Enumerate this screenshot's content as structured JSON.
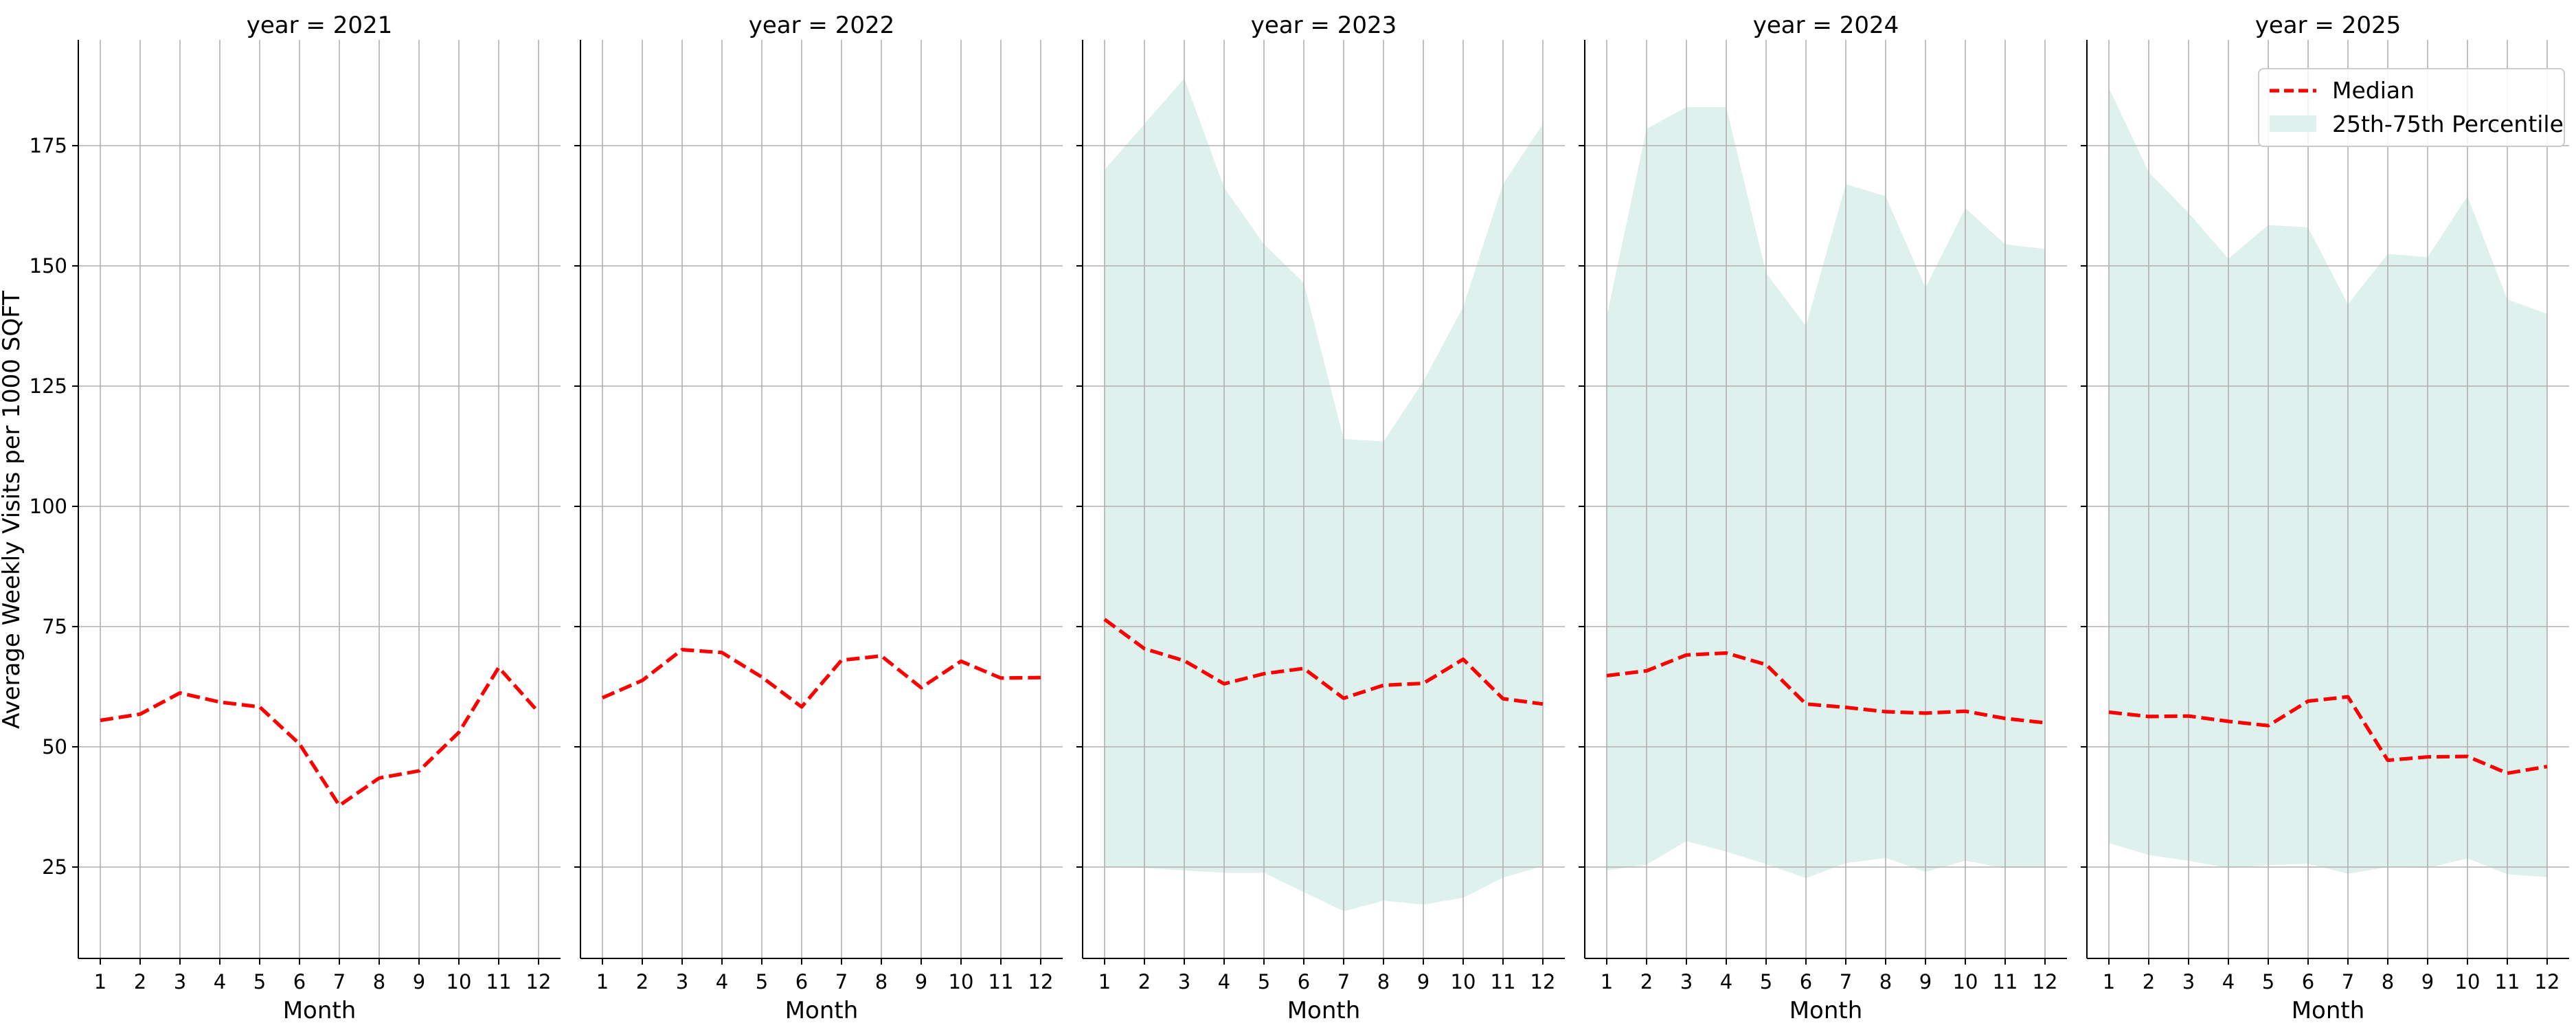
{
  "chart_data": {
    "type": "line",
    "ylabel": "Average Weekly Visits per 1000 SQFT",
    "xlabel": "Month",
    "x": [
      1,
      2,
      3,
      4,
      5,
      6,
      7,
      8,
      9,
      10,
      11,
      12
    ],
    "ylim": [
      6,
      197
    ],
    "yticks": [
      25,
      50,
      75,
      100,
      125,
      150,
      175
    ],
    "grid": true,
    "legend": {
      "placement": "top-right",
      "entries": [
        "Median",
        "25th-75th Percentile"
      ]
    },
    "colors": {
      "median": "#ff0000",
      "band": "#dff1ec",
      "grid": "#b0b0b0"
    },
    "panels": [
      {
        "title": "year = 2021",
        "median": [
          55.5,
          56.8,
          61.2,
          59.3,
          58.3,
          50.6,
          37.8,
          43.5,
          45.0,
          53.0,
          66.5,
          57.2
        ],
        "band_low": null,
        "band_high": null
      },
      {
        "title": "year = 2022",
        "median": [
          60.2,
          63.8,
          70.2,
          69.6,
          64.5,
          58.3,
          68.0,
          68.9,
          62.3,
          67.8,
          64.3,
          64.4
        ],
        "band_low": null,
        "band_high": null
      },
      {
        "title": "year = 2023",
        "median": [
          76.5,
          70.4,
          67.9,
          63.1,
          65.2,
          66.3,
          60.1,
          62.8,
          63.2,
          68.2,
          60.0,
          58.9
        ],
        "band_low": [
          25.0,
          24.8,
          24.3,
          23.8,
          23.8,
          19.8,
          15.8,
          18.0,
          17.2,
          18.6,
          22.8,
          25.2
        ],
        "band_high": [
          170.0,
          179.5,
          189.0,
          166.3,
          154.5,
          146.5,
          114.0,
          113.5,
          126.0,
          141.5,
          167.0,
          179.5
        ]
      },
      {
        "title": "year = 2024",
        "median": [
          64.8,
          65.8,
          69.1,
          69.5,
          67.1,
          58.9,
          58.2,
          57.3,
          57.0,
          57.4,
          55.9,
          55.0
        ],
        "band_low": [
          24.3,
          25.5,
          30.4,
          28.2,
          25.6,
          22.7,
          25.8,
          26.9,
          24.0,
          26.3,
          24.8,
          24.8
        ],
        "band_high": [
          139.5,
          178.5,
          183.0,
          183.0,
          148.5,
          137.5,
          167.0,
          164.5,
          145.5,
          162.0,
          154.5,
          153.5
        ]
      },
      {
        "title": "year = 2025",
        "median": [
          57.2,
          56.3,
          56.4,
          55.3,
          54.4,
          59.5,
          60.4,
          47.2,
          47.9,
          48.0,
          44.5,
          45.9
        ],
        "band_low": [
          30.0,
          27.5,
          26.3,
          24.8,
          25.4,
          25.7,
          23.6,
          25.0,
          24.8,
          26.8,
          23.5,
          22.9
        ],
        "band_high": [
          187.0,
          169.5,
          161.0,
          151.5,
          158.5,
          158.0,
          142.0,
          152.5,
          151.8,
          164.5,
          143.0,
          140.0
        ]
      }
    ]
  }
}
